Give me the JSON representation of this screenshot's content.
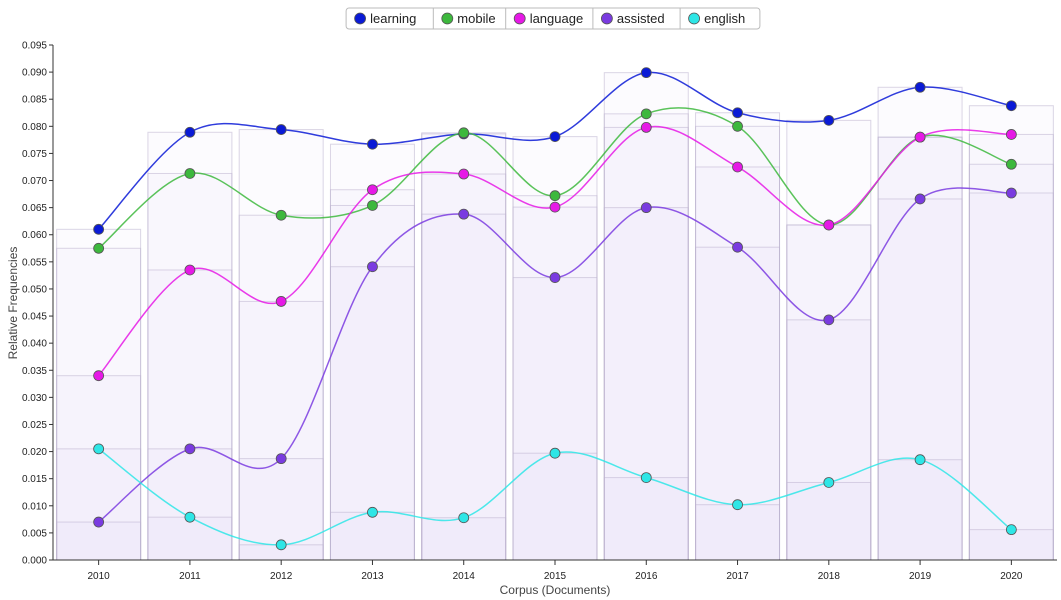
{
  "chart_data": {
    "type": "line",
    "title": "",
    "xlabel": "Corpus (Documents)",
    "ylabel": "Relative Frequencies",
    "ylim": [
      0,
      0.095
    ],
    "y_ticks": [
      "0.000",
      "0.005",
      "0.010",
      "0.015",
      "0.020",
      "0.025",
      "0.030",
      "0.035",
      "0.040",
      "0.045",
      "0.050",
      "0.055",
      "0.060",
      "0.065",
      "0.070",
      "0.075",
      "0.080",
      "0.085",
      "0.090",
      "0.095"
    ],
    "categories": [
      "2010",
      "2011",
      "2012",
      "2013",
      "2014",
      "2015",
      "2016",
      "2017",
      "2018",
      "2019",
      "2020"
    ],
    "legend_position": "top-center",
    "series": [
      {
        "name": "learning",
        "color": "#0a1ad6",
        "values": [
          0.061,
          0.0789,
          0.0794,
          0.0767,
          0.0786,
          0.0781,
          0.0899,
          0.0825,
          0.0811,
          0.0872,
          0.0838
        ]
      },
      {
        "name": "mobile",
        "color": "#3db83d",
        "values": [
          0.0575,
          0.0713,
          0.0636,
          0.0654,
          0.0788,
          0.0672,
          0.0823,
          0.08,
          0.0618,
          0.078,
          0.073
        ]
      },
      {
        "name": "language",
        "color": "#e619e6",
        "values": [
          0.034,
          0.0535,
          0.0477,
          0.0683,
          0.0712,
          0.0651,
          0.0798,
          0.0725,
          0.0618,
          0.078,
          0.0785
        ]
      },
      {
        "name": "assisted",
        "color": "#7a3be0",
        "values": [
          0.007,
          0.0205,
          0.0187,
          0.0541,
          0.0638,
          0.0521,
          0.065,
          0.0577,
          0.0443,
          0.0666,
          0.0677
        ]
      },
      {
        "name": "english",
        "color": "#2ee6e6",
        "values": [
          0.0205,
          0.0079,
          0.0028,
          0.0088,
          0.0078,
          0.0197,
          0.0152,
          0.0102,
          0.0143,
          0.0185,
          0.0056
        ]
      }
    ]
  }
}
